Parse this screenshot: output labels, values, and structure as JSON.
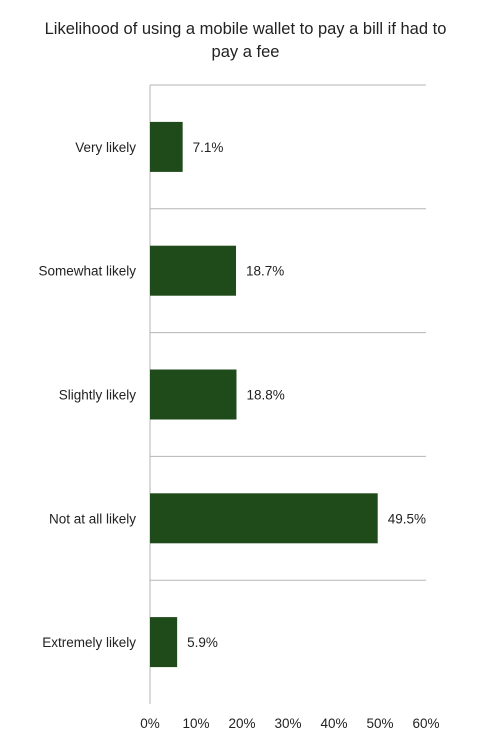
{
  "chart_data": {
    "type": "bar",
    "orientation": "horizontal",
    "title": "Likelihood of using a mobile wallet to pay a bill if had to pay a fee",
    "categories": [
      "Very likely",
      "Somewhat likely",
      "Slightly likely",
      "Not at all likely",
      "Extremely likely"
    ],
    "values": [
      7.1,
      18.7,
      18.8,
      49.5,
      5.9
    ],
    "value_labels": [
      "7.1%",
      "18.7%",
      "18.8%",
      "49.5%",
      "5.9%"
    ],
    "xlim": [
      0,
      60
    ],
    "x_ticks": [
      0,
      10,
      20,
      30,
      40,
      50,
      60
    ],
    "x_tick_labels": [
      "0%",
      "10%",
      "20%",
      "30%",
      "40%",
      "50%",
      "60%"
    ],
    "xlabel": "",
    "ylabel": "",
    "bar_color": "#1f4a1a",
    "grid": "horizontal separators between categories",
    "legend": "none"
  }
}
